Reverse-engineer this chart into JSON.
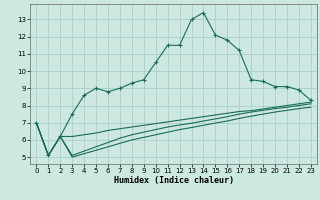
{
  "xlabel": "Humidex (Indice chaleur)",
  "bg_color": "#cce8e0",
  "grid_color": "#aacfc8",
  "line_color": "#1a6b5a",
  "x_humidex": [
    0,
    1,
    2,
    3,
    4,
    5,
    6,
    7,
    8,
    9,
    10,
    11,
    12,
    13,
    14,
    15,
    16,
    17,
    18,
    19,
    20,
    21,
    22,
    23
  ],
  "y_main": [
    7.0,
    5.1,
    6.2,
    7.5,
    8.6,
    9.0,
    8.8,
    9.0,
    9.3,
    9.5,
    10.5,
    11.5,
    11.5,
    13.0,
    13.4,
    12.1,
    11.8,
    11.2,
    9.5,
    9.4,
    9.1,
    9.1,
    8.9,
    8.3
  ],
  "y_line2": [
    7.0,
    5.1,
    6.2,
    6.2,
    6.3,
    6.4,
    6.55,
    6.65,
    6.75,
    6.85,
    6.95,
    7.05,
    7.15,
    7.25,
    7.35,
    7.45,
    7.55,
    7.65,
    7.7,
    7.8,
    7.9,
    8.0,
    8.1,
    8.2
  ],
  "y_line3": [
    7.0,
    5.1,
    6.2,
    5.1,
    5.35,
    5.6,
    5.85,
    6.1,
    6.3,
    6.45,
    6.6,
    6.75,
    6.87,
    6.97,
    7.1,
    7.22,
    7.35,
    7.5,
    7.62,
    7.72,
    7.82,
    7.9,
    8.0,
    8.1
  ],
  "y_line4": [
    7.0,
    5.1,
    6.2,
    5.0,
    5.2,
    5.4,
    5.6,
    5.8,
    6.0,
    6.15,
    6.3,
    6.45,
    6.6,
    6.72,
    6.85,
    6.98,
    7.1,
    7.25,
    7.38,
    7.5,
    7.62,
    7.72,
    7.82,
    7.9
  ],
  "ylim": [
    4.6,
    13.9
  ],
  "xlim": [
    -0.5,
    23.5
  ],
  "yticks": [
    5,
    6,
    7,
    8,
    9,
    10,
    11,
    12,
    13
  ],
  "xticks": [
    0,
    1,
    2,
    3,
    4,
    5,
    6,
    7,
    8,
    9,
    10,
    11,
    12,
    13,
    14,
    15,
    16,
    17,
    18,
    19,
    20,
    21,
    22,
    23
  ]
}
